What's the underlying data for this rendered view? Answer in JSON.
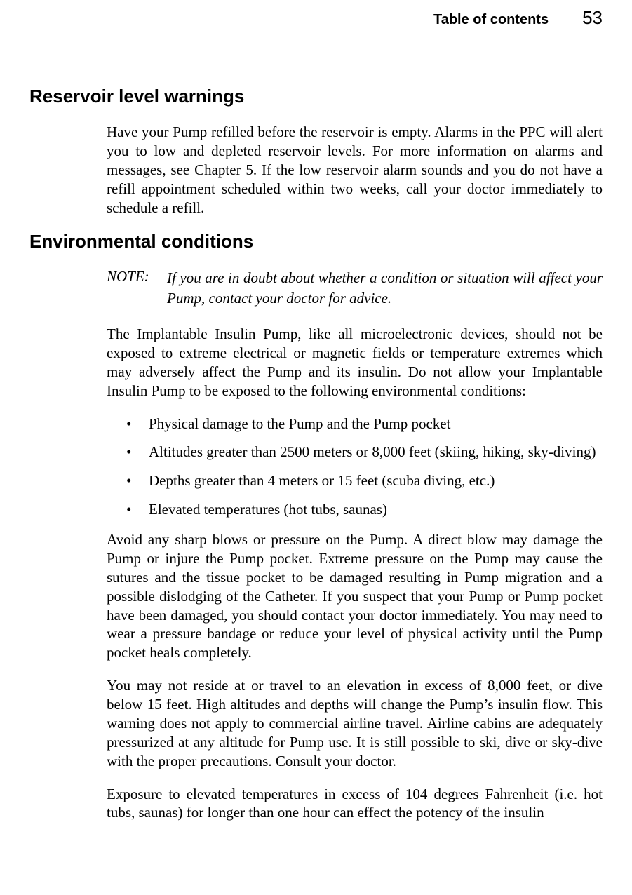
{
  "header": {
    "toc_label": "Table of contents",
    "page_number": "53"
  },
  "section1": {
    "heading": "Reservoir level warnings",
    "para1": "Have your Pump refilled before the reservoir is empty. Alarms in the PPC will alert you to low and depleted reservoir levels. For more information on alarms and messages, see Chapter 5. If the low reservoir alarm sounds and you do not have a refill appointment scheduled within two weeks, call your doctor imme­diately to schedule a refill."
  },
  "section2": {
    "heading": "Environmental conditions",
    "note_label": "NOTE:",
    "note_text": "If you are in doubt about whether a condition or situation will affect your Pump, contact your doctor for advice.",
    "para1": "The Implantable Insulin Pump, like all microelectronic devices, should not be exposed to extreme electrical or magnetic fields or temperature extremes which may adversely affect the Pump and its insulin. Do not allow your Implantable Insulin Pump to be exposed to the following environmental con­ditions:",
    "bullets": [
      "Physical damage to the Pump and the Pump pocket",
      "Altitudes greater than 2500 meters or 8,000 feet (skiing, hiking, sky-diving)",
      "Depths greater than 4 meters or 15 feet (scuba diving, etc.)",
      "Elevated temperatures (hot tubs, saunas)"
    ],
    "para2": "Avoid any sharp blows or pressure on the Pump. A direct blow may damage the Pump or injure the Pump pocket. Extreme pressure on the Pump may cause the sutures and the tissue pocket to be damaged resulting in Pump migration and a possible dislodging of the Catheter. If you suspect that your Pump or Pump pocket have been damaged, you should contact your doctor immediately. You may need to wear a pressure bandage or reduce your level of physical activity until the Pump pocket heals completely.",
    "para3": "You may not reside at or travel to an elevation in excess of 8,000 feet, or dive below 15 feet. High altitudes and depths will change the Pump’s insulin flow. This warning does not apply to commercial airline travel. Airline cabins are adequately pressurized at any altitude for Pump use. It is still possible to ski, dive or sky-dive with the proper precautions. Consult your doctor.",
    "para4": "Exposure to elevated temperatures in excess of 104 degrees Fahrenheit (i.e. hot tubs, saunas) for longer than one hour can effect the potency of the insulin"
  }
}
